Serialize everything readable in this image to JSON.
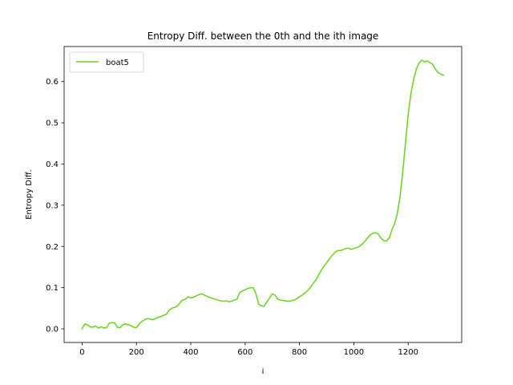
{
  "chart_data": {
    "type": "line",
    "title": "Entropy Diff. between the 0th and the ith image",
    "xlabel": "i",
    "ylabel": "Entropy Diff.",
    "xlim": [
      -66,
      1397
    ],
    "ylim": [
      -0.033,
      0.685
    ],
    "xticks": [
      0,
      200,
      400,
      600,
      800,
      1000,
      1200
    ],
    "yticks": [
      0.0,
      0.1,
      0.2,
      0.3,
      0.4,
      0.5,
      0.6
    ],
    "ytick_labels": [
      "0.0",
      "0.1",
      "0.2",
      "0.3",
      "0.4",
      "0.5",
      "0.6"
    ],
    "grid": false,
    "legend_position": "upper left",
    "series": [
      {
        "name": "boat5",
        "color": "#66d419",
        "x": [
          0,
          10,
          20,
          30,
          40,
          50,
          60,
          70,
          80,
          90,
          100,
          110,
          120,
          130,
          140,
          150,
          160,
          170,
          180,
          190,
          200,
          210,
          220,
          230,
          240,
          250,
          260,
          270,
          280,
          290,
          300,
          310,
          320,
          330,
          340,
          350,
          360,
          370,
          380,
          390,
          400,
          410,
          420,
          430,
          440,
          450,
          460,
          470,
          480,
          490,
          500,
          510,
          520,
          530,
          540,
          550,
          560,
          570,
          580,
          590,
          600,
          610,
          620,
          630,
          640,
          650,
          660,
          670,
          680,
          690,
          700,
          710,
          720,
          730,
          740,
          750,
          760,
          770,
          780,
          790,
          800,
          810,
          820,
          830,
          840,
          850,
          860,
          870,
          880,
          890,
          900,
          910,
          920,
          930,
          940,
          950,
          960,
          970,
          980,
          990,
          1000,
          1010,
          1020,
          1030,
          1040,
          1050,
          1060,
          1070,
          1080,
          1090,
          1100,
          1110,
          1120,
          1130,
          1140,
          1150,
          1160,
          1170,
          1180,
          1190,
          1200,
          1210,
          1220,
          1230,
          1240,
          1250,
          1260,
          1270,
          1280,
          1290,
          1300,
          1310,
          1320,
          1330
        ],
        "y": [
          0.0,
          0.012,
          0.01,
          0.005,
          0.004,
          0.007,
          0.002,
          0.005,
          0.002,
          0.003,
          0.014,
          0.015,
          0.015,
          0.004,
          0.003,
          0.01,
          0.012,
          0.01,
          0.008,
          0.004,
          0.003,
          0.012,
          0.018,
          0.022,
          0.025,
          0.024,
          0.022,
          0.025,
          0.028,
          0.03,
          0.033,
          0.035,
          0.045,
          0.05,
          0.052,
          0.055,
          0.063,
          0.07,
          0.072,
          0.078,
          0.075,
          0.077,
          0.08,
          0.083,
          0.085,
          0.082,
          0.079,
          0.076,
          0.074,
          0.072,
          0.07,
          0.068,
          0.067,
          0.068,
          0.066,
          0.067,
          0.07,
          0.072,
          0.088,
          0.092,
          0.095,
          0.098,
          0.1,
          0.1,
          0.085,
          0.06,
          0.056,
          0.055,
          0.065,
          0.075,
          0.085,
          0.082,
          0.072,
          0.07,
          0.069,
          0.068,
          0.067,
          0.068,
          0.07,
          0.073,
          0.078,
          0.082,
          0.087,
          0.093,
          0.1,
          0.11,
          0.118,
          0.13,
          0.142,
          0.152,
          0.16,
          0.17,
          0.178,
          0.185,
          0.19,
          0.19,
          0.192,
          0.195,
          0.196,
          0.193,
          0.195,
          0.197,
          0.2,
          0.205,
          0.212,
          0.22,
          0.228,
          0.232,
          0.233,
          0.23,
          0.22,
          0.214,
          0.213,
          0.22,
          0.24,
          0.255,
          0.28,
          0.32,
          0.38,
          0.45,
          0.52,
          0.57,
          0.605,
          0.63,
          0.645,
          0.652,
          0.648,
          0.65,
          0.646,
          0.642,
          0.63,
          0.622,
          0.618,
          0.615
        ]
      }
    ]
  }
}
